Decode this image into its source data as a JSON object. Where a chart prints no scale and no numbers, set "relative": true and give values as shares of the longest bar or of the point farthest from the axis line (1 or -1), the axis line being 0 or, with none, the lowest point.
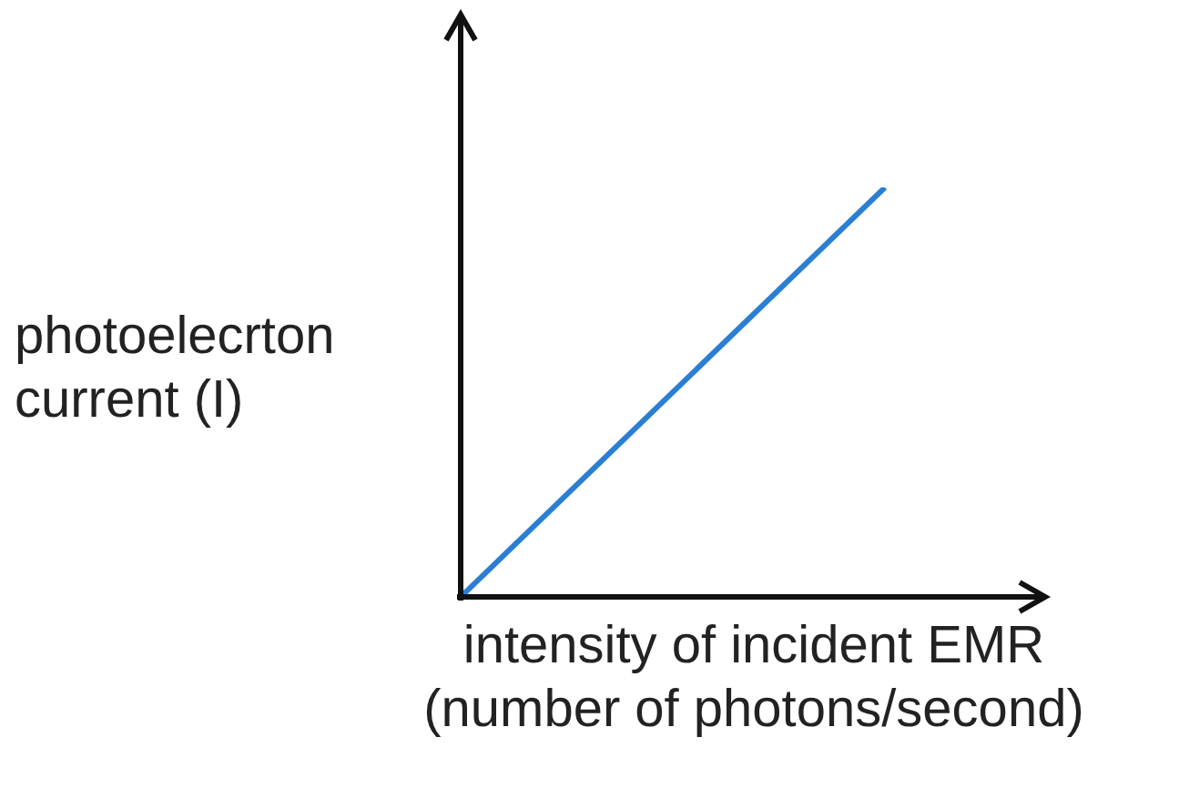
{
  "chart_data": {
    "type": "line",
    "relative": true,
    "xlabel": "intensity of incident EMR (number of photons/second)",
    "ylabel": "photoelecrton current (I)",
    "categories": [
      null,
      null
    ],
    "series": [
      {
        "color": "#2a7fd4",
        "values": [
          0,
          1
        ]
      }
    ],
    "marker": "none",
    "legend": false
  }
}
